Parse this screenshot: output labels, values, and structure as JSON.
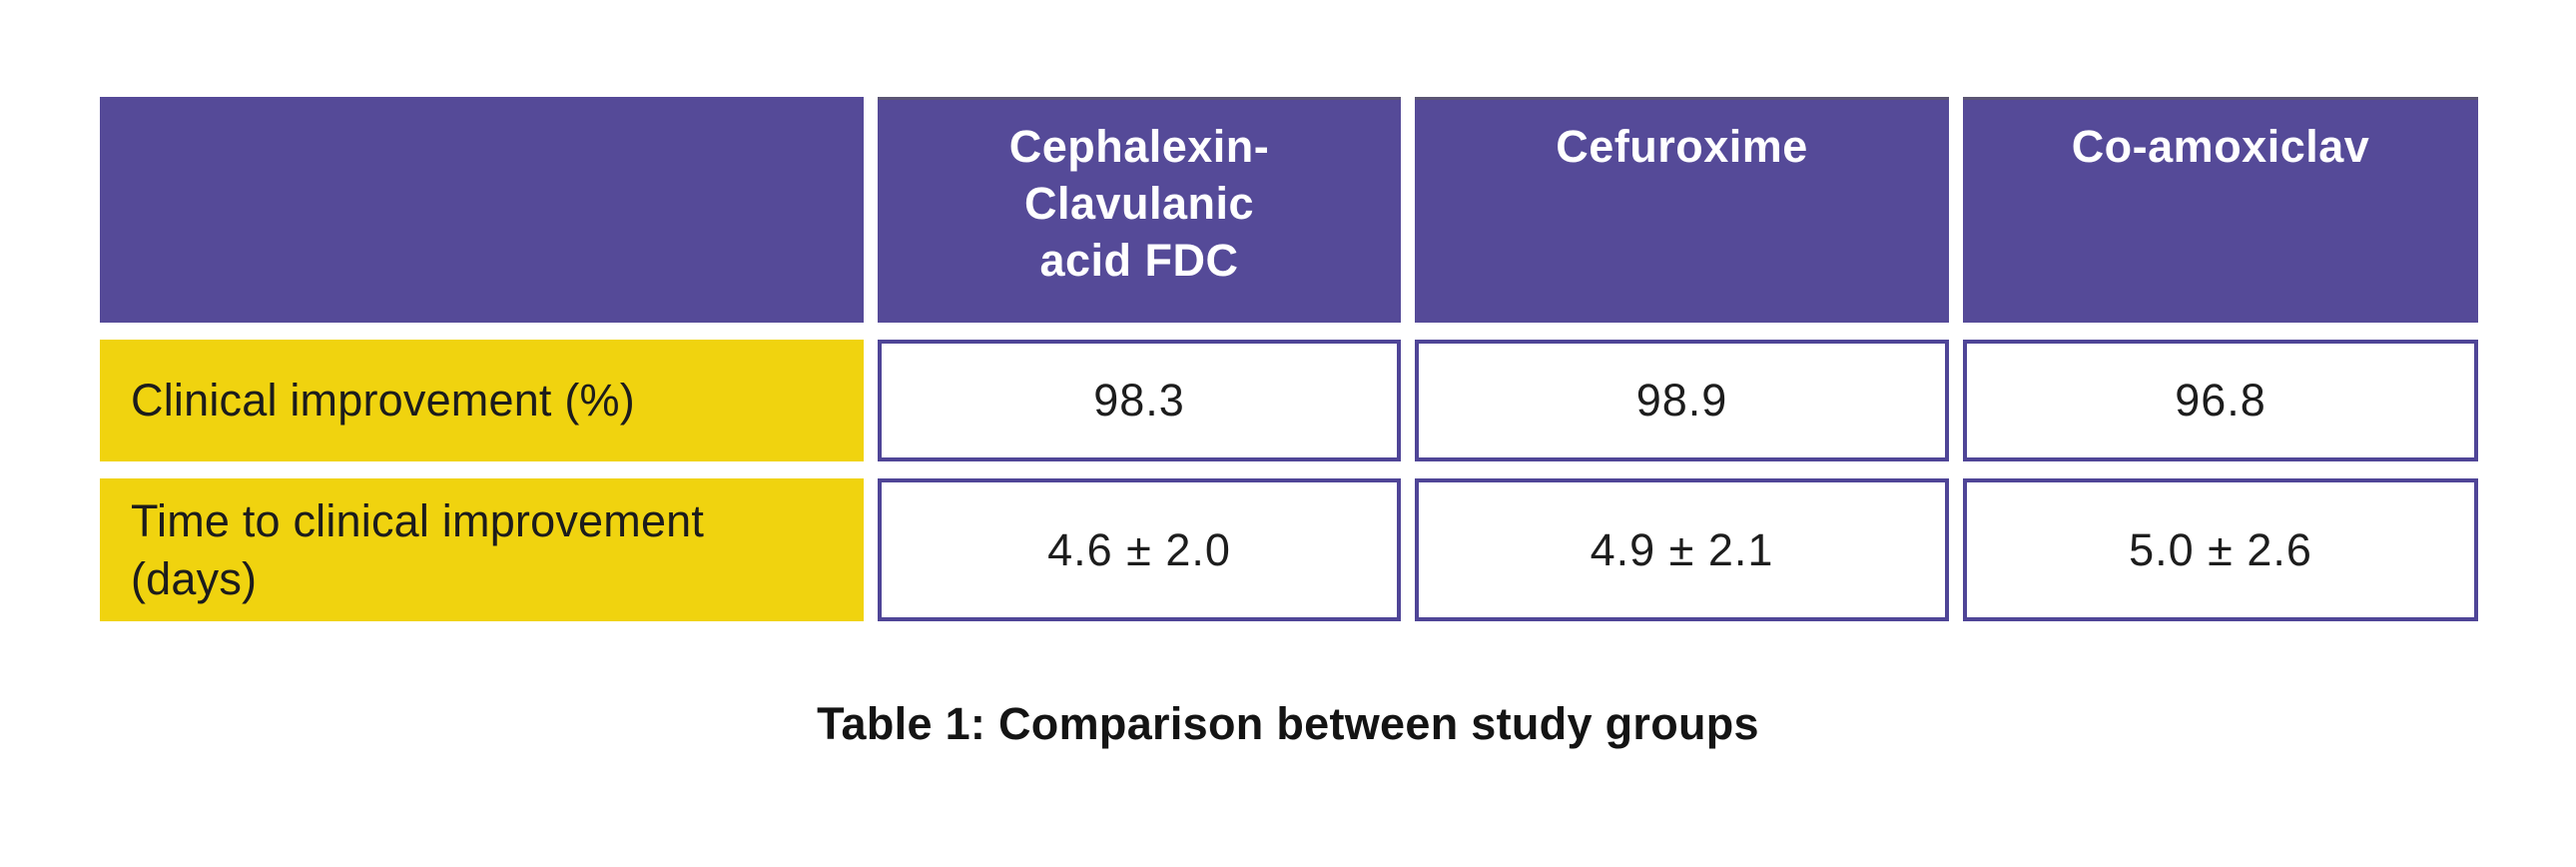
{
  "table": {
    "columns": [
      "",
      "Cephalexin-\nClavulanic\nacid FDC",
      "Cefuroxime",
      "Co-amoxiclav"
    ],
    "rows": [
      {
        "label": "Clinical improvement (%)",
        "values": [
          "98.3",
          "98.9",
          "96.8"
        ]
      },
      {
        "label": "Time to clinical improvement (days)",
        "values": [
          "4.6 ± 2.0",
          "4.9 ± 2.1",
          "5.0 ± 2.6"
        ]
      }
    ]
  },
  "caption": "Table 1: Comparison between study groups",
  "colors": {
    "header_purple": "#554a98",
    "cell_border_purple": "#4f4597",
    "label_yellow": "#f0d30f",
    "text_dark": "#1d1d1d",
    "header_text": "#ffffff"
  }
}
